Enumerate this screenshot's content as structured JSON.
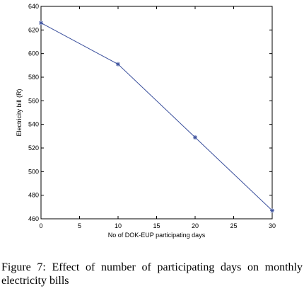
{
  "chart_data": {
    "type": "line",
    "xlabel": "No of DOK-EUP participating days",
    "ylabel": "Electricity bill (R)",
    "xlim": [
      0,
      30
    ],
    "ylim": [
      460,
      640
    ],
    "xticks": [
      0,
      5,
      10,
      15,
      20,
      25,
      30
    ],
    "yticks": [
      460,
      480,
      500,
      520,
      540,
      560,
      580,
      600,
      620,
      640
    ],
    "grid": false,
    "marker": "asterisk",
    "line_color": "#3a4f9c",
    "series": [
      {
        "x": [
          0,
          10,
          20,
          30
        ],
        "y": [
          626,
          591,
          529,
          467
        ]
      }
    ]
  },
  "caption": "Figure 7: Effect of number of participating days on monthly electricity bills"
}
